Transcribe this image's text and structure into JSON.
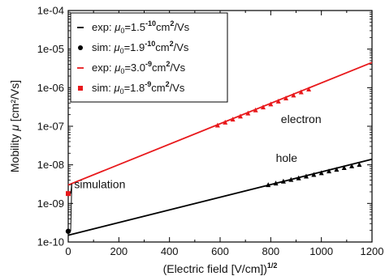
{
  "chart_data": {
    "type": "scatter",
    "xlabel": "(Electric field [V/cm])",
    "xlabel_exponent": "1/2",
    "ylabel": "Mobility",
    "ylabel_symbol": "μ",
    "ylabel_unit": "[cm²/Vs]",
    "xlim": [
      0,
      1200
    ],
    "ylim": [
      1e-10,
      0.0001
    ],
    "yscale": "log",
    "x_ticks": [
      "0",
      "200",
      "400",
      "600",
      "800",
      "1000",
      "1200"
    ],
    "x_tick_values": [
      0,
      200,
      400,
      600,
      800,
      1000,
      1200
    ],
    "y_ticks": [
      "1e-10",
      "1e-09",
      "1e-08",
      "1e-07",
      "1e-06",
      "1e-05",
      "1e-04"
    ],
    "y_tick_values": [
      1e-10,
      1e-09,
      1e-08,
      1e-07,
      1e-06,
      1e-05,
      0.0001
    ],
    "legend_position": "top-left",
    "legend": [
      {
        "symbol": "–",
        "prefix": "exp: ",
        "mu": "μ",
        "sub": "0",
        "eq": "=1.5",
        "exp": "-10",
        "unit": "cm",
        "unit_sup": "2",
        "unit_tail": "/Vs",
        "color": "#000000",
        "marker": "line"
      },
      {
        "symbol": "●",
        "prefix": "sim: ",
        "mu": "μ",
        "sub": "0",
        "eq": "=1.9",
        "exp": "-10",
        "unit": "cm",
        "unit_sup": "2",
        "unit_tail": "/Vs",
        "color": "#000000",
        "marker": "circle"
      },
      {
        "symbol": "–",
        "prefix": "exp: ",
        "mu": "μ",
        "sub": "0",
        "eq": "=3.0",
        "exp": "-9",
        "unit": "cm",
        "unit_sup": "2",
        "unit_tail": "/Vs",
        "color": "#e8191c",
        "marker": "line"
      },
      {
        "symbol": "■",
        "prefix": "sim: ",
        "mu": "μ",
        "sub": "0",
        "eq": "=1.8",
        "exp": "-9",
        "unit": "cm",
        "unit_sup": "2",
        "unit_tail": "/Vs",
        "color": "#e8191c",
        "marker": "square"
      }
    ],
    "series": [
      {
        "name": "exp (hole)",
        "kind": "line",
        "color": "#000000",
        "x": [
          0,
          1200
        ],
        "y": [
          1.5e-10,
          1.4e-08
        ]
      },
      {
        "name": "exp (electron)",
        "kind": "line",
        "color": "#e8191c",
        "x": [
          0,
          1200
        ],
        "y": [
          3e-09,
          4.5e-06
        ]
      },
      {
        "name": "sim (hole)",
        "kind": "point",
        "color": "#000000",
        "x": [
          0
        ],
        "y": [
          1.9e-10
        ]
      },
      {
        "name": "sim (electron)",
        "kind": "point",
        "color": "#e8191c",
        "x": [
          0
        ],
        "y": [
          1.8e-09
        ]
      },
      {
        "name": "exp data (hole)",
        "kind": "markers",
        "color": "#000000",
        "x": [
          790,
          820,
          850,
          880,
          910,
          940,
          970,
          1000,
          1030,
          1060,
          1090,
          1120,
          1150
        ],
        "y": [
          3e-09,
          3.3e-09,
          3.7e-09,
          4.1e-09,
          4.5e-09,
          5e-09,
          5.5e-09,
          6.1e-09,
          6.8e-09,
          7.5e-09,
          8.3e-09,
          9.2e-09,
          1e-08
        ]
      },
      {
        "name": "exp data (electron)",
        "kind": "markers",
        "color": "#e8191c",
        "x": [
          590,
          620,
          650,
          680,
          710,
          740,
          770,
          800,
          830,
          860,
          890,
          920,
          950
        ],
        "y": [
          1.05e-07,
          1.25e-07,
          1.5e-07,
          1.8e-07,
          2.15e-07,
          2.6e-07,
          3.1e-07,
          3.7e-07,
          4.4e-07,
          5.3e-07,
          6.3e-07,
          7.6e-07,
          9e-07
        ]
      }
    ],
    "annotations": [
      {
        "text": "electron",
        "x": 840,
        "y": 1.2e-07
      },
      {
        "text": "hole",
        "x": 820,
        "y": 1.2e-08
      },
      {
        "text": "simulation",
        "x": 200,
        "y": 2.5e-09,
        "arrows_to": [
          [
            0,
            1.8e-09
          ],
          [
            0,
            1.9e-10
          ]
        ]
      }
    ]
  }
}
